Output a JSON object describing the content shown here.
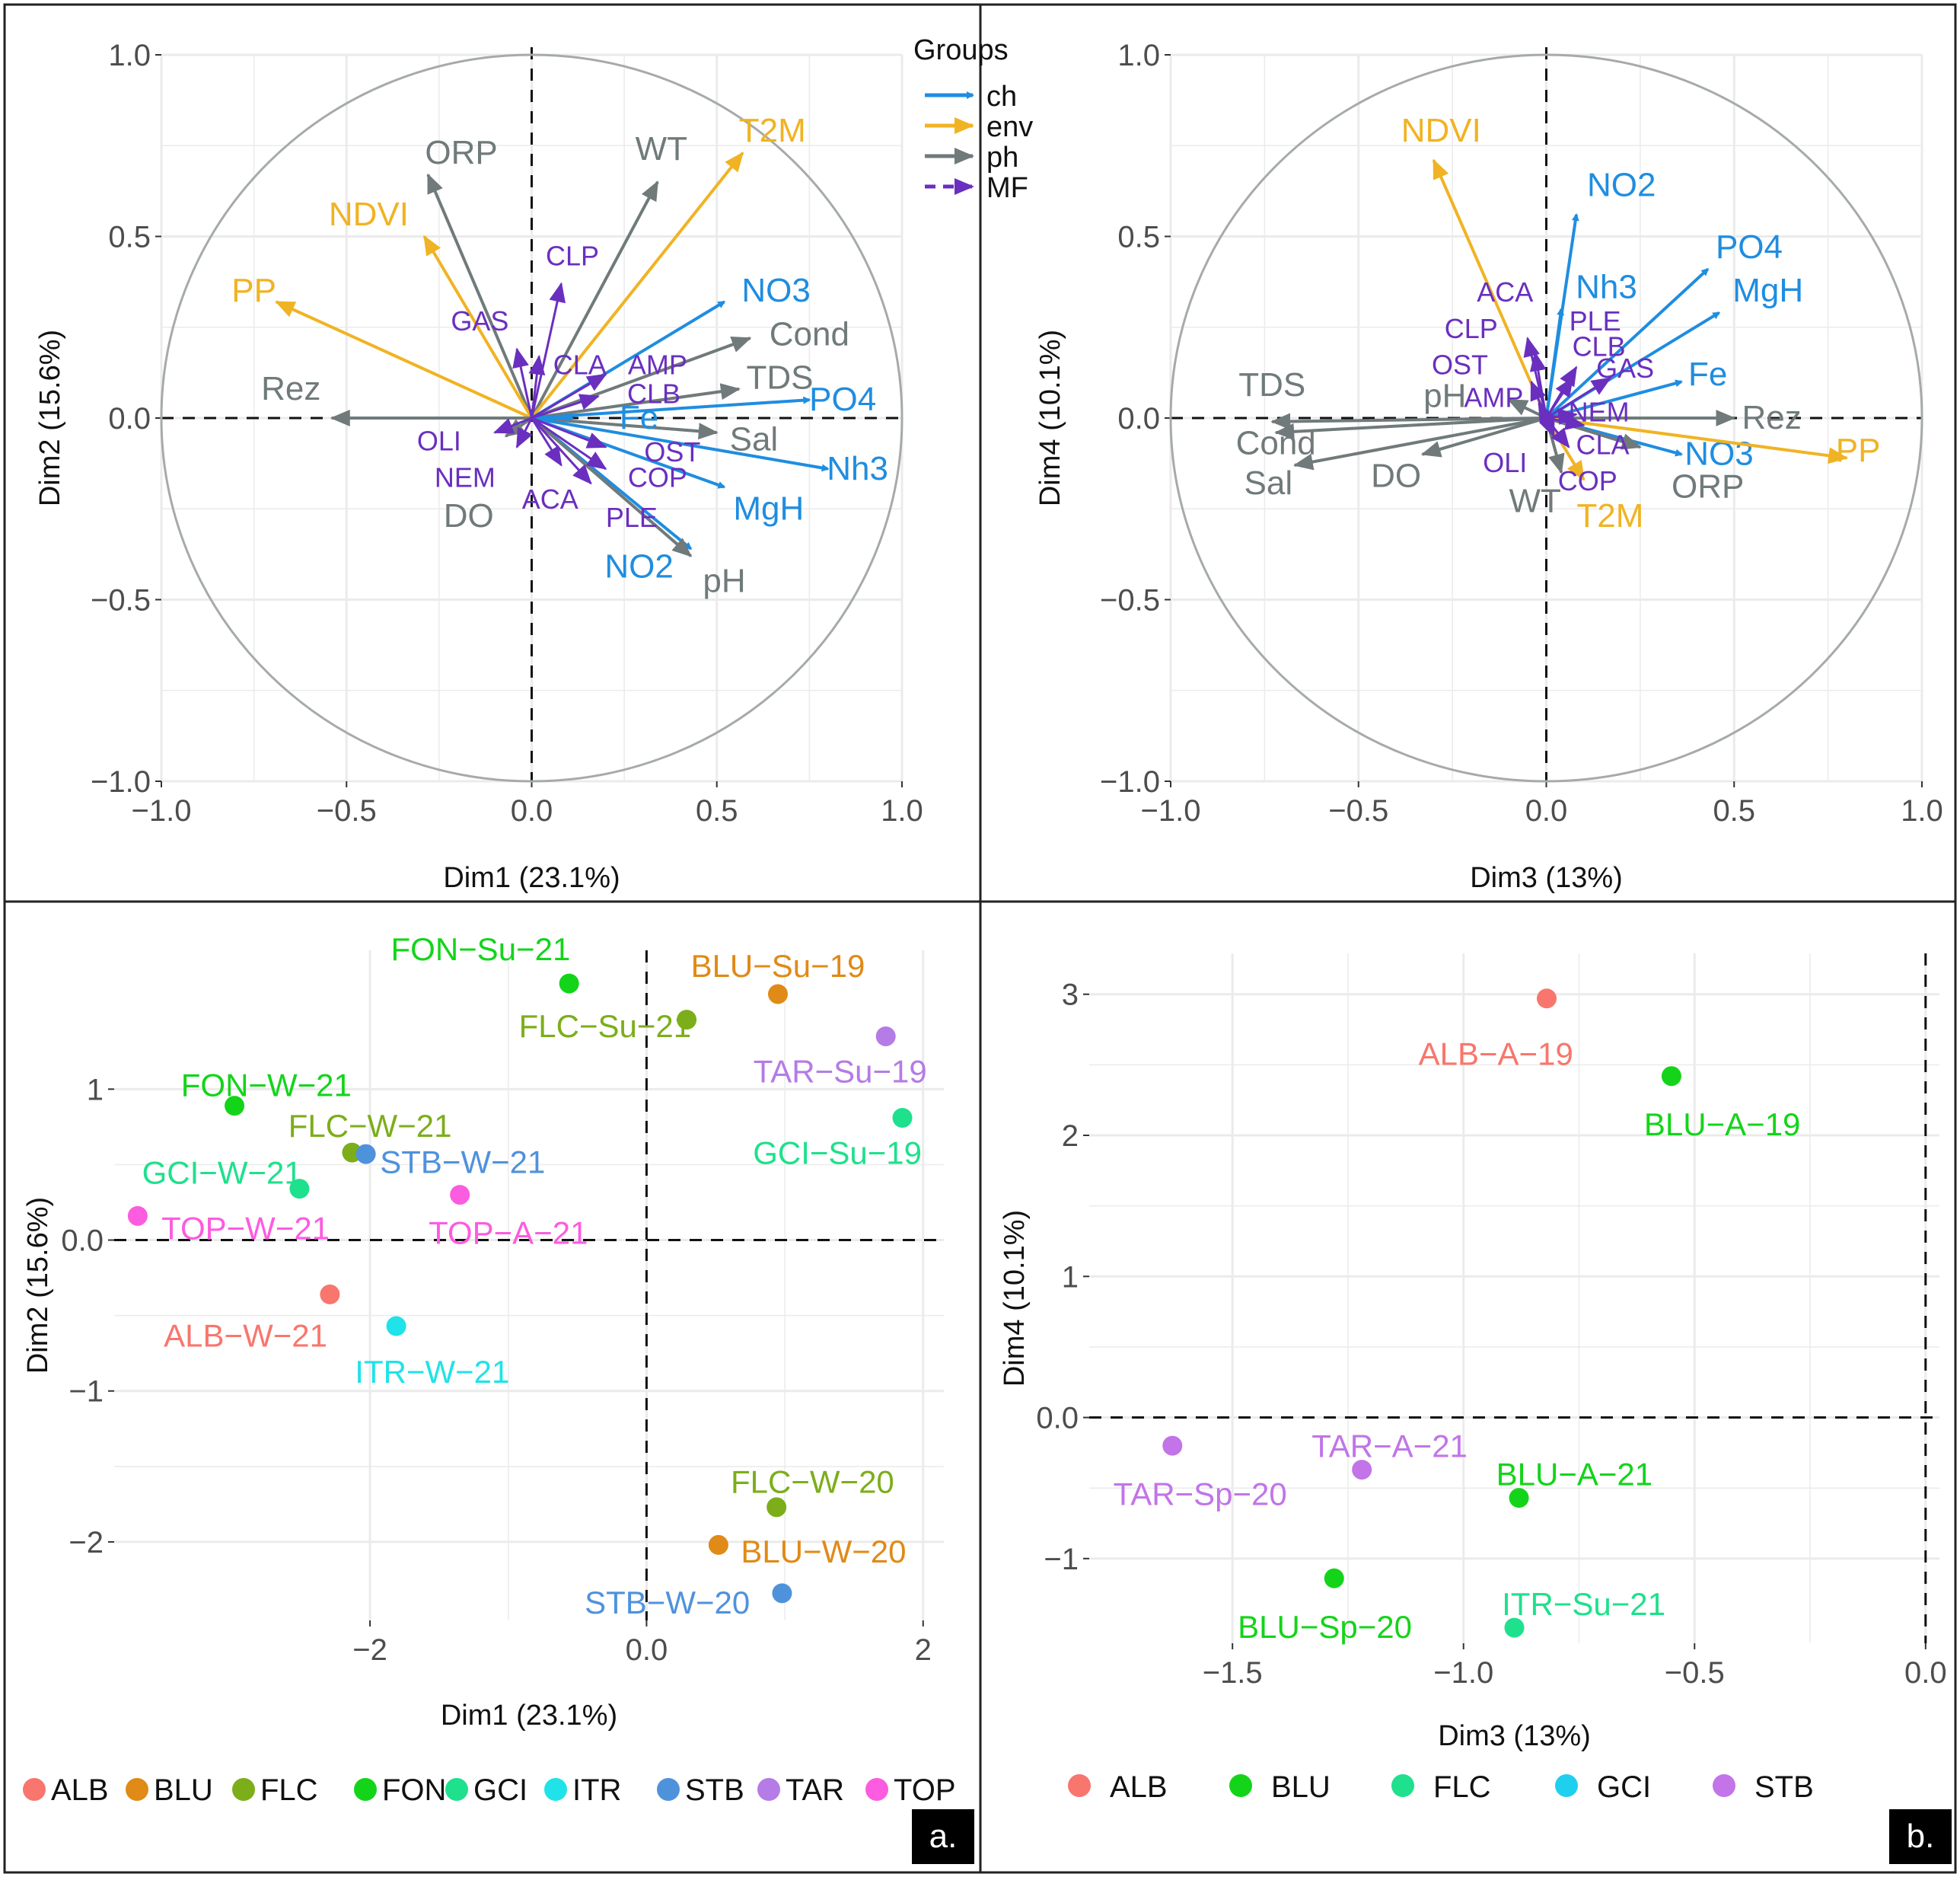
{
  "colors": {
    "ch": "#1f8de0",
    "env": "#f0b323",
    "ph": "#707a7a",
    "MF": "#6a2fbf",
    "grid": "#ebebeb",
    "circle": "#a6aaaa",
    "ALB": "#f8766d",
    "BLU": "#e08a17",
    "FLC": "#7cae1a",
    "FON": "#14d41a",
    "GCI": "#1fe08c",
    "ITR": "#1fe3e8",
    "STB": "#4f92dc",
    "TAR": "#b57be6",
    "TOP": "#fc5ce0",
    "b_ALB": "#f8766d",
    "b_BLU": "#14d41a",
    "b_FLC": "#1fe08c",
    "b_GCI": "#1fd0ee",
    "b_STB": "#c274e8"
  },
  "panel_letters": {
    "a": "a.",
    "b": "b."
  },
  "legend_groups": {
    "title": "Groups",
    "items": [
      {
        "label": "ch",
        "group": "ch"
      },
      {
        "label": "env",
        "group": "env"
      },
      {
        "label": "ph",
        "group": "ph"
      },
      {
        "label": "MF",
        "group": "MF"
      }
    ]
  },
  "chart_data": [
    {
      "id": "pca12",
      "type": "scatter",
      "subtype": "correlation-circle",
      "title": "",
      "xlabel": "Dim1 (23.1%)",
      "ylabel": "Dim2 (15.6%)",
      "xlim": [
        -1.0,
        1.0
      ],
      "ylim": [
        -1.0,
        1.0
      ],
      "xticks": [
        -1.0,
        -0.5,
        0.0,
        0.5,
        1.0
      ],
      "yticks": [
        -1.0,
        -0.5,
        0.0,
        0.5,
        1.0
      ],
      "xtick_labels": [
        "−1.0",
        "−0.5",
        "0.0",
        "0.5",
        "1.0"
      ],
      "ytick_labels": [
        "−1.0",
        "−0.5",
        "0.0",
        "0.5",
        "1.0"
      ],
      "vectors": [
        {
          "label": "ORP",
          "group": "ph",
          "x": -0.28,
          "y": 0.67,
          "lx": -0.19,
          "ly": 0.73
        },
        {
          "label": "WT",
          "group": "ph",
          "x": 0.34,
          "y": 0.65,
          "lx": 0.35,
          "ly": 0.74
        },
        {
          "label": "T2M",
          "group": "env",
          "x": 0.57,
          "y": 0.73,
          "lx": 0.65,
          "ly": 0.79
        },
        {
          "label": "NDVI",
          "group": "env",
          "x": -0.29,
          "y": 0.5,
          "lx": -0.44,
          "ly": 0.56
        },
        {
          "label": "PP",
          "group": "env",
          "x": -0.69,
          "y": 0.32,
          "lx": -0.75,
          "ly": 0.35
        },
        {
          "label": "Rez",
          "group": "ph",
          "x": -0.54,
          "y": 0.0,
          "lx": -0.65,
          "ly": 0.08
        },
        {
          "label": "NO3",
          "group": "ch",
          "x": 0.52,
          "y": 0.32,
          "lx": 0.66,
          "ly": 0.35
        },
        {
          "label": "Cond",
          "group": "ph",
          "x": 0.59,
          "y": 0.22,
          "lx": 0.75,
          "ly": 0.23
        },
        {
          "label": "TDS",
          "group": "ph",
          "x": 0.56,
          "y": 0.08,
          "lx": 0.67,
          "ly": 0.11
        },
        {
          "label": "PO4",
          "group": "ch",
          "x": 0.75,
          "y": 0.05,
          "lx": 0.84,
          "ly": 0.05
        },
        {
          "label": "Sal",
          "group": "ph",
          "x": 0.5,
          "y": -0.04,
          "lx": 0.6,
          "ly": -0.06
        },
        {
          "label": "Nh3",
          "group": "ch",
          "x": 0.8,
          "y": -0.14,
          "lx": 0.88,
          "ly": -0.14
        },
        {
          "label": "MgH",
          "group": "ch",
          "x": 0.52,
          "y": -0.19,
          "lx": 0.64,
          "ly": -0.25
        },
        {
          "label": "NO2",
          "group": "ch",
          "x": 0.43,
          "y": -0.36,
          "lx": 0.29,
          "ly": -0.41
        },
        {
          "label": "pH",
          "group": "ph",
          "x": 0.43,
          "y": -0.38,
          "lx": 0.52,
          "ly": -0.45
        },
        {
          "label": "Fe",
          "group": "ch",
          "x": 0.11,
          "y": 0.0,
          "lx": 0.29,
          "ly": 0.0
        },
        {
          "label": "DO",
          "group": "ph",
          "x": -0.07,
          "y": -0.05,
          "lx": -0.17,
          "ly": -0.27
        },
        {
          "label": "CLP",
          "group": "MF",
          "x": 0.08,
          "y": 0.37,
          "lx": 0.11,
          "ly": 0.45
        },
        {
          "label": "GAS",
          "group": "MF",
          "x": -0.04,
          "y": 0.19,
          "lx": -0.14,
          "ly": 0.27
        },
        {
          "label": "CLA",
          "group": "MF",
          "x": 0.02,
          "y": 0.17,
          "lx": 0.13,
          "ly": 0.15
        },
        {
          "label": "AMP",
          "group": "MF",
          "x": 0.2,
          "y": 0.12,
          "lx": 0.34,
          "ly": 0.15
        },
        {
          "label": "CLB",
          "group": "MF",
          "x": 0.18,
          "y": 0.06,
          "lx": 0.33,
          "ly": 0.07
        },
        {
          "label": "OLI",
          "group": "MF",
          "x": -0.1,
          "y": -0.04,
          "lx": -0.25,
          "ly": -0.06
        },
        {
          "label": "NEM",
          "group": "MF",
          "x": -0.04,
          "y": -0.08,
          "lx": -0.18,
          "ly": -0.16
        },
        {
          "label": "OST",
          "group": "MF",
          "x": 0.2,
          "y": -0.08,
          "lx": 0.38,
          "ly": -0.09
        },
        {
          "label": "COP",
          "group": "MF",
          "x": 0.2,
          "y": -0.14,
          "lx": 0.34,
          "ly": -0.16
        },
        {
          "label": "ACA",
          "group": "MF",
          "x": 0.08,
          "y": -0.13,
          "lx": 0.05,
          "ly": -0.22
        },
        {
          "label": "PLE",
          "group": "MF",
          "x": 0.16,
          "y": -0.18,
          "lx": 0.27,
          "ly": -0.27
        }
      ]
    },
    {
      "id": "pca34",
      "type": "scatter",
      "subtype": "correlation-circle",
      "title": "",
      "xlabel": "Dim3 (13%)",
      "ylabel": "Dim4 (10.1%)",
      "xlim": [
        -1.0,
        1.0
      ],
      "ylim": [
        -1.0,
        1.0
      ],
      "xticks": [
        -1.0,
        -0.5,
        0.0,
        0.5,
        1.0
      ],
      "yticks": [
        -1.0,
        -0.5,
        0.0,
        0.5,
        1.0
      ],
      "xtick_labels": [
        "−1.0",
        "−0.5",
        "0.0",
        "0.5",
        "1.0"
      ],
      "ytick_labels": [
        "−1.0",
        "−0.5",
        "0.0",
        "0.5",
        "1.0"
      ],
      "vectors": [
        {
          "label": "NDVI",
          "group": "env",
          "x": -0.3,
          "y": 0.71,
          "lx": -0.28,
          "ly": 0.79
        },
        {
          "label": "NO2",
          "group": "ch",
          "x": 0.08,
          "y": 0.56,
          "lx": 0.2,
          "ly": 0.64
        },
        {
          "label": "PO4",
          "group": "ch",
          "x": 0.43,
          "y": 0.41,
          "lx": 0.54,
          "ly": 0.47
        },
        {
          "label": "MgH",
          "group": "ch",
          "x": 0.46,
          "y": 0.29,
          "lx": 0.59,
          "ly": 0.35
        },
        {
          "label": "Nh3",
          "group": "ch",
          "x": 0.04,
          "y": 0.3,
          "lx": 0.16,
          "ly": 0.36
        },
        {
          "label": "Fe",
          "group": "ch",
          "x": 0.36,
          "y": 0.1,
          "lx": 0.43,
          "ly": 0.12
        },
        {
          "label": "NO3",
          "group": "ch",
          "x": 0.36,
          "y": -0.1,
          "lx": 0.46,
          "ly": -0.1
        },
        {
          "label": "Rez",
          "group": "ph",
          "x": 0.5,
          "y": 0.0,
          "lx": 0.6,
          "ly": 0.0
        },
        {
          "label": "PP",
          "group": "env",
          "x": 0.8,
          "y": -0.11,
          "lx": 0.83,
          "ly": -0.09
        },
        {
          "label": "ORP",
          "group": "ph",
          "x": 0.25,
          "y": -0.08,
          "lx": 0.43,
          "ly": -0.19
        },
        {
          "label": "T2M",
          "group": "env",
          "x": 0.1,
          "y": -0.17,
          "lx": 0.17,
          "ly": -0.27
        },
        {
          "label": "WT",
          "group": "ph",
          "x": 0.04,
          "y": -0.15,
          "lx": -0.03,
          "ly": -0.23
        },
        {
          "label": "TDS",
          "group": "ph",
          "x": -0.73,
          "y": -0.01,
          "lx": -0.73,
          "ly": 0.09
        },
        {
          "label": "Cond",
          "group": "ph",
          "x": -0.72,
          "y": -0.04,
          "lx": -0.72,
          "ly": -0.07
        },
        {
          "label": "Sal",
          "group": "ph",
          "x": -0.67,
          "y": -0.13,
          "lx": -0.74,
          "ly": -0.18
        },
        {
          "label": "DO",
          "group": "ph",
          "x": -0.33,
          "y": -0.1,
          "lx": -0.4,
          "ly": -0.16
        },
        {
          "label": "ACA",
          "group": "MF",
          "x": -0.05,
          "y": 0.22,
          "lx": -0.11,
          "ly": 0.35
        },
        {
          "label": "CLP",
          "group": "MF",
          "x": -0.03,
          "y": 0.18,
          "lx": -0.2,
          "ly": 0.25
        },
        {
          "label": "PLE",
          "group": "MF",
          "x": 0.08,
          "y": 0.14,
          "lx": 0.13,
          "ly": 0.27
        },
        {
          "label": "CLB",
          "group": "MF",
          "x": 0.07,
          "y": 0.11,
          "lx": 0.14,
          "ly": 0.2
        },
        {
          "label": "OST",
          "group": "MF",
          "x": -0.04,
          "y": 0.1,
          "lx": -0.23,
          "ly": 0.15
        },
        {
          "label": "GAS",
          "group": "MF",
          "x": 0.17,
          "y": 0.11,
          "lx": 0.21,
          "ly": 0.14
        },
        {
          "label": "pH",
          "group": "ph",
          "x": -0.1,
          "y": 0.05,
          "lx": -0.27,
          "ly": 0.06
        },
        {
          "label": "AMP",
          "group": "MF",
          "x": -0.02,
          "y": 0.04,
          "lx": -0.14,
          "ly": 0.06
        },
        {
          "label": "NEM",
          "group": "MF",
          "x": 0.08,
          "y": 0.01,
          "lx": 0.14,
          "ly": 0.02
        },
        {
          "label": "CLA",
          "group": "MF",
          "x": 0.1,
          "y": -0.02,
          "lx": 0.15,
          "ly": -0.07
        },
        {
          "label": "OLI",
          "group": "MF",
          "x": 0.02,
          "y": -0.05,
          "lx": -0.11,
          "ly": -0.12
        },
        {
          "label": "COP",
          "group": "MF",
          "x": 0.06,
          "y": -0.08,
          "lx": 0.11,
          "ly": -0.17
        }
      ]
    },
    {
      "id": "scores12",
      "type": "scatter",
      "title": "",
      "xlabel": "Dim1 (23.1%)",
      "ylabel": "Dim2 (15.6%)",
      "xlim": [
        -3.85,
        2.15
      ],
      "ylim": [
        -2.52,
        1.92
      ],
      "xticks": [
        -2,
        0,
        2
      ],
      "yticks": [
        -2,
        -1,
        0,
        1
      ],
      "xtick_labels": [
        "−2",
        "0.0",
        "2"
      ],
      "ytick_labels": [
        "−2",
        "−1",
        "0.0",
        "1"
      ],
      "legend": [
        "ALB",
        "BLU",
        "FLC",
        "FON",
        "GCI",
        "ITR",
        "STB",
        "TAR",
        "TOP"
      ],
      "points": [
        {
          "label": "FON−Su−21",
          "group": "FON",
          "x": -0.56,
          "y": 1.7,
          "lx": -1.2,
          "ly": 1.93,
          "anchor": "middle"
        },
        {
          "label": "BLU−Su−19",
          "group": "BLU",
          "x": 0.95,
          "y": 1.63,
          "lx": 0.95,
          "ly": 1.82,
          "anchor": "middle"
        },
        {
          "label": "FLC−Su−21",
          "group": "FLC",
          "x": 0.29,
          "y": 1.46,
          "lx": -0.3,
          "ly": 1.42,
          "anchor": "middle"
        },
        {
          "label": "TAR−Su−19",
          "group": "TAR",
          "x": 1.73,
          "y": 1.35,
          "lx": 1.4,
          "ly": 1.12,
          "anchor": "middle"
        },
        {
          "label": "FON−W−21",
          "group": "FON",
          "x": -2.98,
          "y": 0.89,
          "lx": -2.75,
          "ly": 1.03,
          "anchor": "middle"
        },
        {
          "label": "GCI−Su−19",
          "group": "GCI",
          "x": 1.85,
          "y": 0.81,
          "lx": 1.38,
          "ly": 0.58,
          "anchor": "middle"
        },
        {
          "label": "FLC−W−21",
          "group": "FLC",
          "x": -2.13,
          "y": 0.58,
          "lx": -2.0,
          "ly": 0.76,
          "anchor": "middle"
        },
        {
          "label": "STB−W−21",
          "group": "STB",
          "x": -2.03,
          "y": 0.57,
          "lx": -1.33,
          "ly": 0.52,
          "anchor": "middle"
        },
        {
          "label": "GCI−W−21",
          "group": "GCI",
          "x": -2.51,
          "y": 0.34,
          "lx": -3.07,
          "ly": 0.45,
          "anchor": "middle"
        },
        {
          "label": "TOP−A−21",
          "group": "TOP",
          "x": -1.35,
          "y": 0.3,
          "lx": -1.0,
          "ly": 0.05,
          "anchor": "middle"
        },
        {
          "label": "TOP−W−21",
          "group": "TOP",
          "x": -3.68,
          "y": 0.16,
          "lx": -2.9,
          "ly": 0.08,
          "anchor": "middle"
        },
        {
          "label": "ALB−W−21",
          "group": "ALB",
          "x": -2.29,
          "y": -0.36,
          "lx": -2.9,
          "ly": -0.63,
          "anchor": "middle"
        },
        {
          "label": "ITR−W−21",
          "group": "ITR",
          "x": -1.81,
          "y": -0.57,
          "lx": -1.55,
          "ly": -0.87,
          "anchor": "middle"
        },
        {
          "label": "FLC−W−20",
          "group": "FLC",
          "x": 0.94,
          "y": -1.77,
          "lx": 1.2,
          "ly": -1.6,
          "anchor": "middle"
        },
        {
          "label": "BLU−W−20",
          "group": "BLU",
          "x": 0.52,
          "y": -2.02,
          "lx": 1.28,
          "ly": -2.06,
          "anchor": "middle"
        },
        {
          "label": "STB−W−20",
          "group": "STB",
          "x": 0.98,
          "y": -2.34,
          "lx": 0.15,
          "ly": -2.4,
          "anchor": "middle"
        }
      ]
    },
    {
      "id": "scores34",
      "type": "scatter",
      "title": "",
      "xlabel": "Dim3 (13%)",
      "ylabel": "Dim4 (10.1%)",
      "xlim": [
        -1.81,
        0.03
      ],
      "ylim": [
        -1.6,
        3.29
      ],
      "xticks": [
        -1.5,
        -1.0,
        -0.5,
        0.0
      ],
      "yticks": [
        -1,
        0,
        1,
        2,
        3
      ],
      "xtick_labels": [
        "−1.5",
        "−1.0",
        "−0.5",
        "0.0"
      ],
      "ytick_labels": [
        "−1",
        "0.0",
        "1",
        "2",
        "3"
      ],
      "legend": [
        "ALB",
        "BLU",
        "FLC",
        "GCI",
        "STB"
      ],
      "points": [
        {
          "label": "ALB−A−19",
          "group": "b_ALB",
          "x": -0.82,
          "y": 2.97,
          "lx": -0.93,
          "ly": 2.58,
          "anchor": "middle"
        },
        {
          "label": "BLU−A−19",
          "group": "b_BLU",
          "x": -0.55,
          "y": 2.42,
          "lx": -0.44,
          "ly": 2.08,
          "anchor": "middle"
        },
        {
          "label": "TAR−A−21",
          "group": "b_STB",
          "x": -1.22,
          "y": -0.37,
          "lx": -1.16,
          "ly": -0.2,
          "anchor": "middle"
        },
        {
          "label": "TAR−Sp−20",
          "group": "b_STB",
          "x": -1.63,
          "y": -0.2,
          "lx": -1.57,
          "ly": -0.54,
          "anchor": "middle"
        },
        {
          "label": "BLU−A−21",
          "group": "b_BLU",
          "x": -0.88,
          "y": -0.57,
          "lx": -0.76,
          "ly": -0.4,
          "anchor": "middle"
        },
        {
          "label": "BLU−Sp−20",
          "group": "b_BLU",
          "x": -1.28,
          "y": -1.14,
          "lx": -1.3,
          "ly": -1.48,
          "anchor": "middle"
        },
        {
          "label": "ITR−Su−21",
          "group": "b_FLC",
          "x": -0.89,
          "y": -1.49,
          "lx": -0.74,
          "ly": -1.32,
          "anchor": "middle"
        }
      ]
    }
  ]
}
